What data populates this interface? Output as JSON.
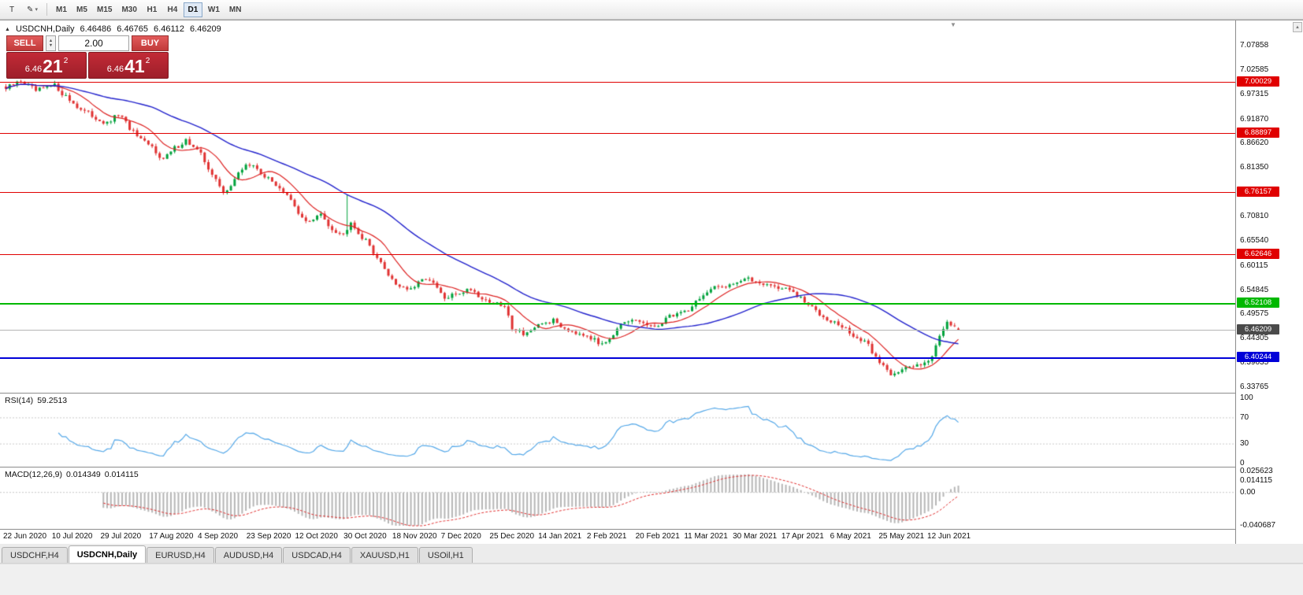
{
  "icons": {
    "template": "T",
    "pen": "✎",
    "dropdown": "▾",
    "expand_toggle": "▲",
    "spin_up": "▲",
    "spin_down": "▼",
    "shift_marker": "▼",
    "scroll_up": "▲"
  },
  "toolbar": {
    "timeframes": [
      "M1",
      "M5",
      "M15",
      "M30",
      "H1",
      "H4",
      "D1",
      "W1",
      "MN"
    ],
    "active_timeframe": "D1"
  },
  "chart_header": {
    "symbol": "USDCNH,Daily",
    "open": "6.46486",
    "high": "6.46765",
    "low": "6.46112",
    "close": "6.46209"
  },
  "trade_panel": {
    "sell_label": "SELL",
    "buy_label": "BUY",
    "volume": "2.00",
    "bid": {
      "prefix": "6.46",
      "big": "21",
      "sup": "2"
    },
    "ask": {
      "prefix": "6.46",
      "big": "41",
      "sup": "2"
    }
  },
  "price_axis": {
    "ticks": [
      "7.07858",
      "7.02585",
      "6.97315",
      "6.91870",
      "6.86620",
      "6.81350",
      "6.70810",
      "6.65540",
      "6.60115",
      "6.54845",
      "6.49575",
      "6.44305",
      "6.39035",
      "6.33765"
    ],
    "badges": [
      {
        "label": "7.00029",
        "color": "#e00000",
        "line": "level",
        "width": 1
      },
      {
        "label": "6.88897",
        "color": "#e00000",
        "line": "level",
        "width": 1
      },
      {
        "label": "6.76157",
        "color": "#e00000",
        "line": "level",
        "width": 1
      },
      {
        "label": "6.62646",
        "color": "#e00000",
        "line": "level",
        "width": 1
      },
      {
        "label": "6.52108",
        "color": "#00b800",
        "line": "level",
        "width": 2
      },
      {
        "label": "6.46209",
        "color": "#4a4a4a",
        "line": "current",
        "width": 1,
        "line_color": "#b4b4b4"
      },
      {
        "label": "6.40244",
        "color": "#0000d8",
        "line": "level",
        "width": 2
      }
    ]
  },
  "rsi": {
    "name": "RSI(14)",
    "value": "59.2513",
    "ticks": [
      {
        "label": "100",
        "v": 100
      },
      {
        "label": "70",
        "v": 70
      },
      {
        "label": "30",
        "v": 30
      },
      {
        "label": "0",
        "v": 0
      }
    ],
    "levels": [
      70,
      30
    ],
    "color": "#55a8e8",
    "range": [
      0,
      100
    ]
  },
  "macd": {
    "name": "MACD(12,26,9)",
    "value_main": "0.014349",
    "value_signal": "0.014115",
    "ticks": [
      {
        "label": "0.025623",
        "v": 0.025623
      },
      {
        "label": "0.014115",
        "v": 0.014115
      },
      {
        "label": "0.00",
        "v": 0
      },
      {
        "label": "-0.040687",
        "v": -0.040687
      }
    ],
    "range": [
      -0.040687,
      0.025623
    ],
    "histogram_color": "#b6b6b6",
    "signal_color": "#e03030"
  },
  "date_axis": [
    "22 Jun 2020",
    "10 Jul 2020",
    "29 Jul 2020",
    "17 Aug 2020",
    "4 Sep 2020",
    "23 Sep 2020",
    "12 Oct 2020",
    "30 Oct 2020",
    "18 Nov 2020",
    "7 Dec 2020",
    "25 Dec 2020",
    "14 Jan 2021",
    "2 Feb 2021",
    "20 Feb 2021",
    "11 Mar 2021",
    "30 Mar 2021",
    "17 Apr 2021",
    "6 May 2021",
    "25 May 2021",
    "12 Jun 2021"
  ],
  "tabs": [
    {
      "label": "USDCHF,H4",
      "active": false
    },
    {
      "label": "USDCNH,Daily",
      "active": true
    },
    {
      "label": "EURUSD,H4",
      "active": false
    },
    {
      "label": "AUDUSD,H4",
      "active": false
    },
    {
      "label": "USDCAD,H4",
      "active": false
    },
    {
      "label": "XAUUSD,H1",
      "active": false
    },
    {
      "label": "USOil,H1",
      "active": false
    }
  ],
  "chart_data": {
    "type": "candlestick",
    "symbol": "USDCNH",
    "timeframe": "Daily",
    "candle_count": 255,
    "ylim": [
      6.3257,
      7.1315
    ],
    "last_candle": {
      "o": 6.46486,
      "h": 6.46765,
      "l": 6.46112,
      "c": 6.46209
    },
    "levels": [
      7.00029,
      6.88897,
      6.76157,
      6.62646,
      6.52108,
      6.40244
    ],
    "current_price": 6.46209,
    "anchors": [
      [
        0,
        6.985
      ],
      [
        4,
        7.002
      ],
      [
        8,
        6.98
      ],
      [
        13,
        6.992
      ],
      [
        16,
        6.968
      ],
      [
        20,
        6.94
      ],
      [
        24,
        6.922
      ],
      [
        27,
        6.908
      ],
      [
        30,
        6.93
      ],
      [
        33,
        6.9
      ],
      [
        36,
        6.872
      ],
      [
        39,
        6.858
      ],
      [
        42,
        6.832
      ],
      [
        45,
        6.856
      ],
      [
        48,
        6.874
      ],
      [
        52,
        6.842
      ],
      [
        55,
        6.8
      ],
      [
        58,
        6.758
      ],
      [
        61,
        6.788
      ],
      [
        64,
        6.822
      ],
      [
        67,
        6.812
      ],
      [
        70,
        6.788
      ],
      [
        73,
        6.772
      ],
      [
        76,
        6.742
      ],
      [
        78,
        6.712
      ],
      [
        81,
        6.696
      ],
      [
        84,
        6.712
      ],
      [
        87,
        6.682
      ],
      [
        90,
        6.668
      ],
      [
        92,
        6.7
      ],
      [
        94,
        6.672
      ],
      [
        97,
        6.645
      ],
      [
        100,
        6.605
      ],
      [
        104,
        6.562
      ],
      [
        108,
        6.548
      ],
      [
        112,
        6.576
      ],
      [
        115,
        6.552
      ],
      [
        117,
        6.528
      ],
      [
        120,
        6.54
      ],
      [
        124,
        6.552
      ],
      [
        127,
        6.53
      ],
      [
        130,
        6.52
      ],
      [
        133,
        6.512
      ],
      [
        135,
        6.468
      ],
      [
        138,
        6.455
      ],
      [
        141,
        6.462
      ],
      [
        143,
        6.476
      ],
      [
        146,
        6.482
      ],
      [
        149,
        6.466
      ],
      [
        152,
        6.458
      ],
      [
        155,
        6.452
      ],
      [
        158,
        6.432
      ],
      [
        161,
        6.445
      ],
      [
        164,
        6.47
      ],
      [
        167,
        6.482
      ],
      [
        170,
        6.478
      ],
      [
        173,
        6.464
      ],
      [
        176,
        6.488
      ],
      [
        179,
        6.498
      ],
      [
        182,
        6.506
      ],
      [
        185,
        6.532
      ],
      [
        189,
        6.552
      ],
      [
        193,
        6.562
      ],
      [
        197,
        6.572
      ],
      [
        201,
        6.566
      ],
      [
        205,
        6.556
      ],
      [
        209,
        6.548
      ],
      [
        213,
        6.522
      ],
      [
        217,
        6.498
      ],
      [
        221,
        6.478
      ],
      [
        224,
        6.462
      ],
      [
        227,
        6.444
      ],
      [
        230,
        6.428
      ],
      [
        232,
        6.402
      ],
      [
        234,
        6.384
      ],
      [
        236,
        6.368
      ],
      [
        239,
        6.376
      ],
      [
        242,
        6.382
      ],
      [
        245,
        6.395
      ],
      [
        247,
        6.402
      ],
      [
        249,
        6.452
      ],
      [
        251,
        6.482
      ],
      [
        253,
        6.47
      ],
      [
        254,
        6.46209
      ]
    ],
    "spikes": [
      {
        "index": 91,
        "high": 6.755
      }
    ],
    "up_color": "#00a23c",
    "down_color": "#e03232",
    "ma_fast": {
      "period": 10,
      "color": "#dd2222"
    },
    "ma_slow": {
      "period": 40,
      "color": "#2222cc"
    }
  }
}
